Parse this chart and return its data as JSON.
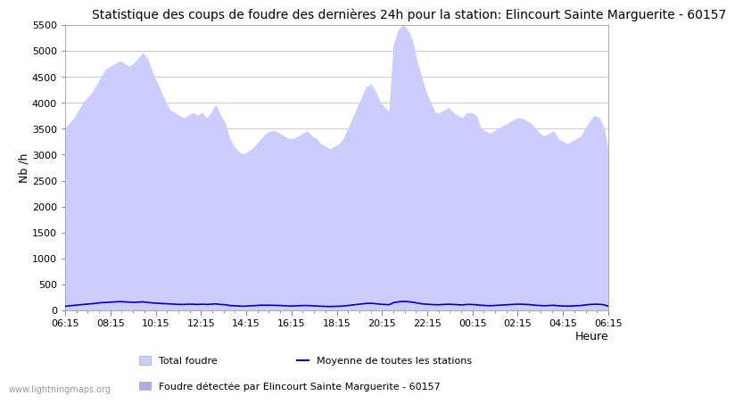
{
  "title": "Statistique des coups de foudre des dernières 24h pour la station: Elincourt Sainte Marguerite - 60157",
  "ylabel": "Nb /h",
  "xlabel": "Heure",
  "ylim": [
    0,
    5500
  ],
  "yticks": [
    0,
    500,
    1000,
    1500,
    2000,
    2500,
    3000,
    3500,
    4000,
    4500,
    5000,
    5500
  ],
  "xtick_labels": [
    "06:15",
    "08:15",
    "10:15",
    "12:15",
    "14:15",
    "16:15",
    "18:15",
    "20:15",
    "22:15",
    "00:15",
    "02:15",
    "04:15",
    "06:15"
  ],
  "watermark": "www.lightningmaps.org",
  "legend_total": "Total foudre",
  "legend_moyenne": "Moyenne de toutes les stations",
  "legend_local": "Foudre détectée par Elincourt Sainte Marguerite - 60157",
  "fill_color_total": "#ccccff",
  "line_color_moyenne": "#0000bb",
  "background_color": "#ffffff",
  "grid_color": "#cccccc",
  "title_fontsize": 10,
  "total_foudre": [
    3500,
    3600,
    3700,
    3850,
    4000,
    4100,
    4200,
    4350,
    4500,
    4650,
    4700,
    4750,
    4800,
    4750,
    4700,
    4750,
    4850,
    4950,
    4850,
    4600,
    4400,
    4200,
    4000,
    3850,
    3800,
    3750,
    3700,
    3750,
    3800,
    3750,
    3800,
    3700,
    3800,
    3950,
    3750,
    3600,
    3300,
    3150,
    3050,
    3000,
    3050,
    3100,
    3200,
    3300,
    3400,
    3450,
    3450,
    3400,
    3350,
    3300,
    3300,
    3350,
    3400,
    3450,
    3350,
    3300,
    3200,
    3150,
    3100,
    3150,
    3200,
    3300,
    3500,
    3700,
    3900,
    4100,
    4300,
    4350,
    4200,
    4000,
    3900,
    3800,
    5100,
    5400,
    5500,
    5400,
    5200,
    4800,
    4500,
    4200,
    4000,
    3800,
    3800,
    3850,
    3900,
    3800,
    3750,
    3700,
    3800,
    3800,
    3750,
    3500,
    3450,
    3400,
    3450,
    3500,
    3550,
    3600,
    3650,
    3700,
    3700,
    3650,
    3600,
    3500,
    3400,
    3350,
    3400,
    3450,
    3300,
    3250,
    3200,
    3250,
    3300,
    3350,
    3500,
    3650,
    3750,
    3700,
    3500,
    3000
  ],
  "local_foudre": [
    80,
    90,
    100,
    110,
    120,
    130,
    140,
    150,
    160,
    160,
    170,
    175,
    180,
    175,
    170,
    165,
    170,
    175,
    165,
    155,
    150,
    145,
    140,
    135,
    130,
    125,
    125,
    130,
    130,
    125,
    130,
    125,
    130,
    135,
    125,
    120,
    105,
    100,
    95,
    90,
    95,
    100,
    105,
    110,
    110,
    110,
    108,
    105,
    100,
    95,
    95,
    100,
    102,
    105,
    100,
    95,
    90,
    88,
    85,
    88,
    90,
    95,
    105,
    115,
    125,
    135,
    145,
    148,
    140,
    130,
    125,
    120,
    160,
    175,
    185,
    180,
    170,
    155,
    140,
    130,
    125,
    120,
    120,
    125,
    130,
    125,
    120,
    115,
    125,
    125,
    120,
    110,
    105,
    100,
    105,
    110,
    115,
    120,
    125,
    130,
    130,
    125,
    120,
    110,
    105,
    100,
    105,
    110,
    100,
    95,
    92,
    95,
    100,
    105,
    115,
    125,
    130,
    128,
    120,
    90
  ],
  "moyenne_foudre": [
    75,
    85,
    92,
    102,
    110,
    118,
    125,
    135,
    145,
    148,
    155,
    160,
    165,
    160,
    155,
    150,
    155,
    160,
    150,
    140,
    135,
    130,
    125,
    120,
    115,
    110,
    110,
    115,
    115,
    110,
    115,
    110,
    115,
    120,
    110,
    105,
    90,
    85,
    80,
    75,
    80,
    85,
    90,
    95,
    95,
    95,
    93,
    90,
    85,
    80,
    80,
    85,
    88,
    90,
    85,
    80,
    75,
    73,
    70,
    73,
    75,
    80,
    90,
    100,
    110,
    120,
    130,
    133,
    125,
    115,
    110,
    105,
    145,
    160,
    170,
    165,
    155,
    140,
    125,
    115,
    110,
    105,
    105,
    110,
    115,
    110,
    105,
    100,
    110,
    110,
    105,
    95,
    90,
    85,
    90,
    95,
    100,
    105,
    110,
    115,
    115,
    110,
    105,
    95,
    90,
    85,
    90,
    95,
    85,
    80,
    77,
    80,
    85,
    90,
    100,
    110,
    115,
    113,
    105,
    75
  ]
}
